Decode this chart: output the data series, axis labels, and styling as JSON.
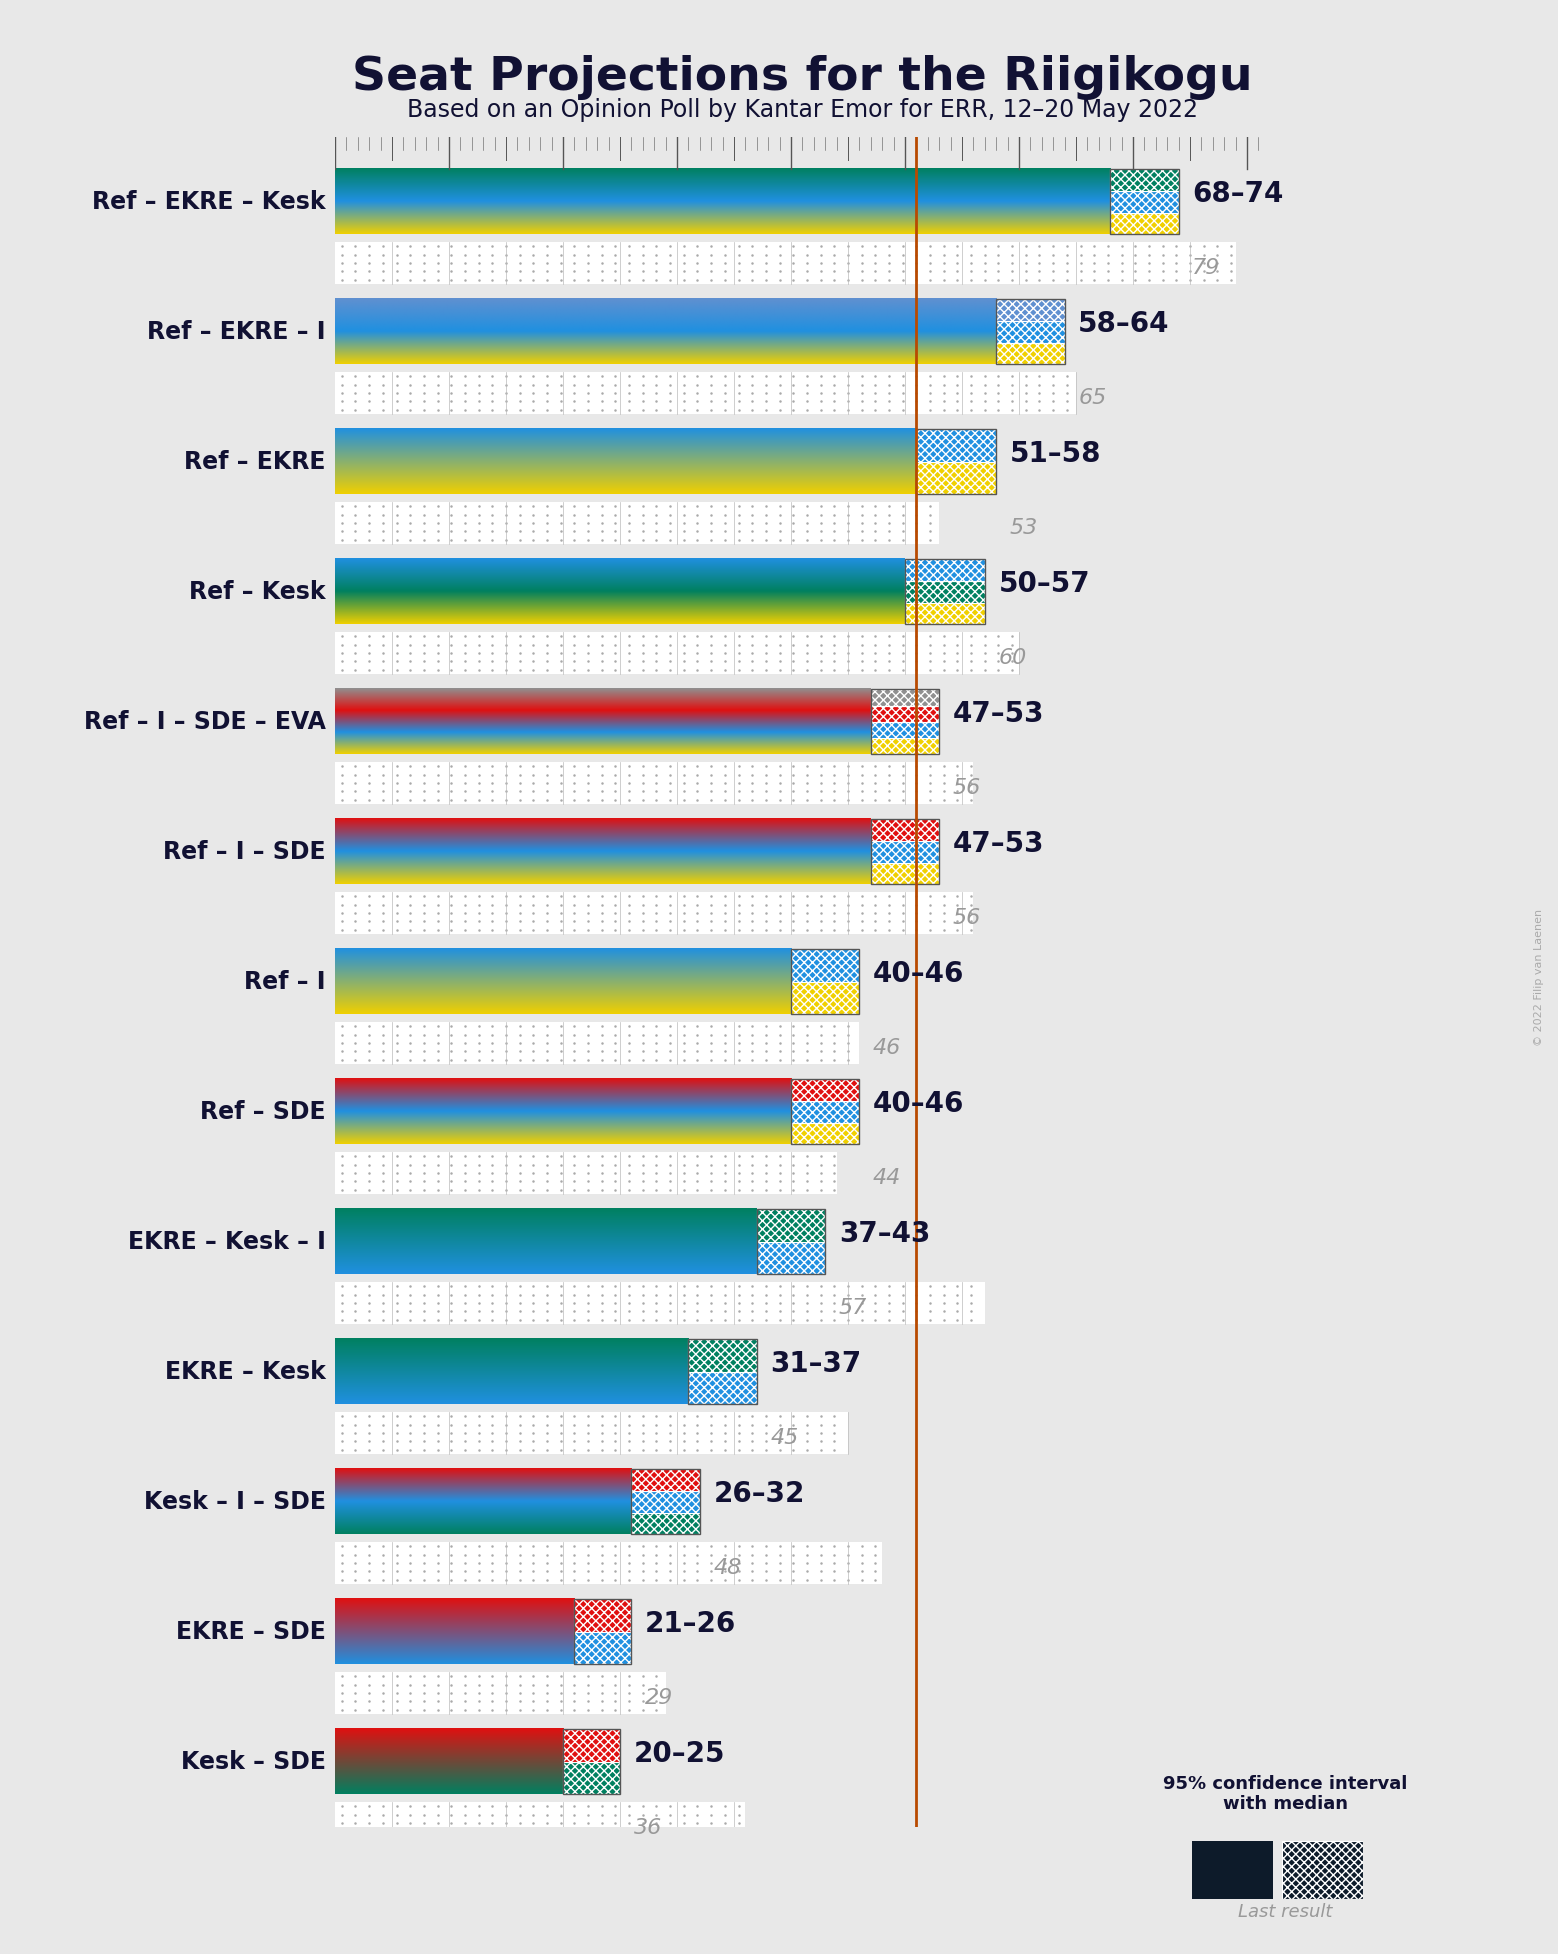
{
  "title": "Seat Projections for the Riigikogu",
  "subtitle": "Based on an Opinion Poll by Kantar Emor for ERR, 12–20 May 2022",
  "copyright": "© 2022 Filip van Laenen",
  "bg_color": "#e8e8e8",
  "majority_line": 51,
  "majority_color": "#b84a00",
  "xlim_max": 82,
  "coalitions": [
    {
      "name": "Ref – EKRE – Kesk",
      "underline": false,
      "parties": [
        "EKRE",
        "Ref",
        "Kesk"
      ],
      "low": 68,
      "high": 74,
      "last": 79
    },
    {
      "name": "Ref – EKRE – I",
      "underline": false,
      "parties": [
        "EKRE",
        "Ref",
        "I"
      ],
      "low": 58,
      "high": 64,
      "last": 65
    },
    {
      "name": "Ref – EKRE",
      "underline": false,
      "parties": [
        "EKRE",
        "Ref"
      ],
      "low": 51,
      "high": 58,
      "last": 53
    },
    {
      "name": "Ref – Kesk",
      "underline": false,
      "parties": [
        "EKRE",
        "Ref",
        "Kesk"
      ],
      "low": 50,
      "high": 57,
      "last": 60
    },
    {
      "name": "Ref – I – SDE – EVA",
      "underline": false,
      "parties": [
        "EKRE",
        "Ref",
        "SDE",
        "EVA"
      ],
      "low": 47,
      "high": 53,
      "last": 56
    },
    {
      "name": "Ref – I – SDE",
      "underline": false,
      "parties": [
        "EKRE",
        "Ref",
        "SDE"
      ],
      "low": 47,
      "high": 53,
      "last": 56
    },
    {
      "name": "Ref – I",
      "underline": false,
      "parties": [
        "EKRE",
        "Ref"
      ],
      "low": 40,
      "high": 46,
      "last": 46
    },
    {
      "name": "Ref – SDE",
      "underline": false,
      "parties": [
        "EKRE",
        "Ref",
        "SDE"
      ],
      "low": 40,
      "high": 46,
      "last": 44
    },
    {
      "name": "EKRE – Kesk – I",
      "underline": true,
      "parties": [
        "Ref",
        "Kesk"
      ],
      "low": 37,
      "high": 43,
      "last": 57
    },
    {
      "name": "EKRE – Kesk",
      "underline": false,
      "parties": [
        "Ref",
        "Kesk"
      ],
      "low": 31,
      "high": 37,
      "last": 45
    },
    {
      "name": "Kesk – I – SDE",
      "underline": false,
      "parties": [
        "Kesk",
        "Ref",
        "SDE"
      ],
      "low": 26,
      "high": 32,
      "last": 48
    },
    {
      "name": "EKRE – SDE",
      "underline": false,
      "parties": [
        "Ref",
        "SDE"
      ],
      "low": 21,
      "high": 26,
      "last": 29
    },
    {
      "name": "Kesk – SDE",
      "underline": false,
      "parties": [
        "Kesk",
        "SDE"
      ],
      "low": 20,
      "high": 25,
      "last": 36
    }
  ],
  "party_colors": {
    "Ref": "#2090e0",
    "EKRE": "#f0d000",
    "Kesk": "#008060",
    "I": "#6090d0",
    "SDE": "#e01010",
    "EVA": "#909090"
  },
  "label_range_fontsize": 20,
  "label_last_fontsize": 16,
  "coalition_name_fontsize": 17,
  "title_fontsize": 34,
  "subtitle_fontsize": 17
}
